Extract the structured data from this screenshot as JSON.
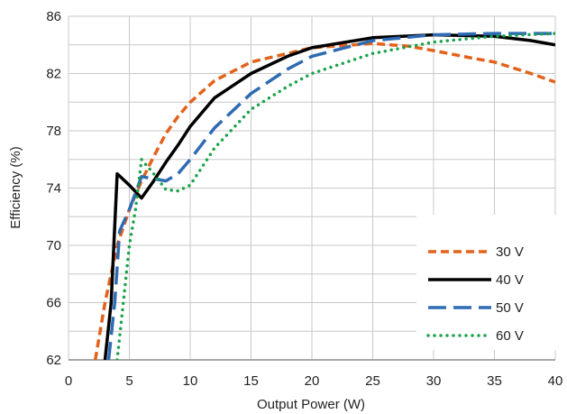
{
  "chart_data": {
    "type": "line",
    "title": "",
    "xlabel": "Output Power (W)",
    "ylabel": "Efficiency (%)",
    "xlim": [
      0,
      40
    ],
    "ylim": [
      62,
      86
    ],
    "xticks": [
      0,
      5,
      10,
      15,
      20,
      25,
      30,
      35,
      40
    ],
    "yticks": [
      62,
      66,
      70,
      74,
      78,
      82,
      86
    ],
    "xtick_labels": [
      "0",
      "5",
      "10",
      "15",
      "20",
      "25",
      "30",
      "35",
      "40"
    ],
    "ytick_labels": [
      "62",
      "66",
      "70",
      "74",
      "78",
      "82",
      "86"
    ],
    "grid": true,
    "legend_position": "bottom-right",
    "series": [
      {
        "name": "30 V",
        "color": "#E2621B",
        "dash": "short-dash",
        "points": [
          [
            2.2,
            62
          ],
          [
            3,
            66
          ],
          [
            4,
            70
          ],
          [
            5,
            72.5
          ],
          [
            6,
            74.5
          ],
          [
            7,
            76.2
          ],
          [
            8,
            77.8
          ],
          [
            9,
            79
          ],
          [
            10,
            80
          ],
          [
            12,
            81.5
          ],
          [
            15,
            82.8
          ],
          [
            20,
            83.8
          ],
          [
            25,
            84.1
          ],
          [
            28,
            83.9
          ],
          [
            30,
            83.6
          ],
          [
            33,
            83.1
          ],
          [
            35,
            82.8
          ],
          [
            38,
            82
          ],
          [
            40,
            81.4
          ]
        ]
      },
      {
        "name": "40 V",
        "color": "#000000",
        "dash": "solid",
        "points": [
          [
            3,
            62
          ],
          [
            3.5,
            66
          ],
          [
            4,
            75
          ],
          [
            5,
            74.2
          ],
          [
            6,
            73.3
          ],
          [
            7,
            74.5
          ],
          [
            8,
            75.8
          ],
          [
            9,
            77
          ],
          [
            10,
            78.3
          ],
          [
            12,
            80.3
          ],
          [
            15,
            82
          ],
          [
            18,
            83.2
          ],
          [
            20,
            83.8
          ],
          [
            25,
            84.5
          ],
          [
            30,
            84.7
          ],
          [
            35,
            84.6
          ],
          [
            38,
            84.3
          ],
          [
            40,
            84
          ]
        ]
      },
      {
        "name": "50 V",
        "color": "#2F6BB3",
        "dash": "long-dash",
        "points": [
          [
            3.3,
            62
          ],
          [
            3.8,
            66
          ],
          [
            4.2,
            71
          ],
          [
            5,
            72.5
          ],
          [
            6,
            74.8
          ],
          [
            8,
            74.5
          ],
          [
            9,
            75
          ],
          [
            10,
            76
          ],
          [
            12,
            78.2
          ],
          [
            15,
            80.6
          ],
          [
            18,
            82.3
          ],
          [
            20,
            83.2
          ],
          [
            25,
            84.3
          ],
          [
            30,
            84.7
          ],
          [
            35,
            84.8
          ],
          [
            40,
            84.8
          ]
        ]
      },
      {
        "name": "60 V",
        "color": "#1AA34A",
        "dash": "dotted",
        "points": [
          [
            4,
            62
          ],
          [
            4.5,
            66
          ],
          [
            5,
            70
          ],
          [
            5.5,
            72.5
          ],
          [
            6,
            76
          ],
          [
            7,
            75
          ],
          [
            8,
            73.9
          ],
          [
            9,
            73.8
          ],
          [
            10,
            74.2
          ],
          [
            12,
            76.8
          ],
          [
            15,
            79.5
          ],
          [
            18,
            81.1
          ],
          [
            20,
            82
          ],
          [
            25,
            83.4
          ],
          [
            30,
            84.2
          ],
          [
            35,
            84.6
          ],
          [
            40,
            84.8
          ]
        ]
      }
    ]
  }
}
